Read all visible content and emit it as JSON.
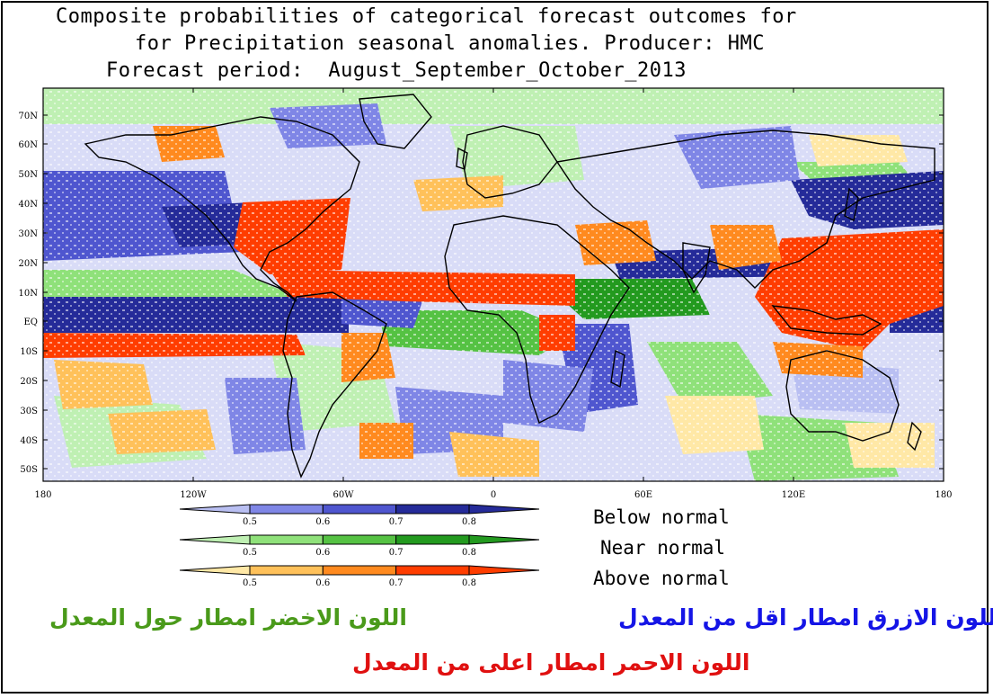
{
  "title": {
    "line1": "Composite probabilities of categorical forecast outcomes for",
    "line2": "for Precipitation seasonal anomalies. Producer: HMC",
    "line3": "Forecast period:  August_September_October_2013"
  },
  "map": {
    "lat_labels": [
      "70N",
      "60N",
      "50N",
      "40N",
      "30N",
      "20N",
      "10N",
      "EQ",
      "10S",
      "20S",
      "30S",
      "40S",
      "50S"
    ],
    "lon_labels": [
      "180",
      "120W",
      "60W",
      "0",
      "60E",
      "120E",
      "180"
    ],
    "colors": {
      "below": [
        "#b9bff2",
        "#7f86e6",
        "#4f56cf",
        "#252b99"
      ],
      "near": [
        "#bff0b3",
        "#8fe17a",
        "#55c243",
        "#239a1f"
      ],
      "above": [
        "#ffe8a6",
        "#ffc15a",
        "#ff8a1f",
        "#ff3d00"
      ],
      "neutral": "#ffffff",
      "coast": "#000000"
    }
  },
  "legend": {
    "ticks": [
      "0.5",
      "0.6",
      "0.7",
      "0.8"
    ],
    "below_label": "Below normal",
    "near_label": "Near normal",
    "above_label": "Above normal"
  },
  "notes": {
    "green": "اللون الاخضر امطار حول المعدل",
    "blue": "اللون الازرق امطار اقل من المعدل",
    "red": "اللون الاحمر امطار اعلى من المعدل",
    "green_color": "#4a9a1a",
    "blue_color": "#1515e6",
    "red_color": "#e01010"
  }
}
